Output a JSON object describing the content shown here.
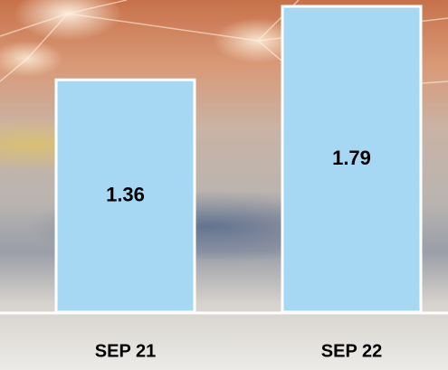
{
  "chart_data": {
    "type": "bar",
    "categories": [
      "SEP 21",
      "SEP 22"
    ],
    "values": [
      1.36,
      1.79
    ],
    "color": "#a6d8f4"
  }
}
